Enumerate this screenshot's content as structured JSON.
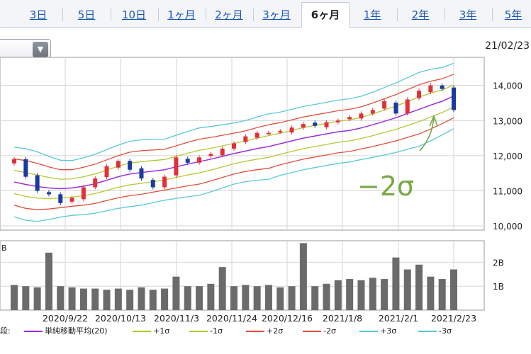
{
  "tabs": [
    {
      "label": "3日",
      "active": false
    },
    {
      "label": "5日",
      "active": false
    },
    {
      "label": "10日",
      "active": false
    },
    {
      "label": "1ヶ月",
      "active": false
    },
    {
      "label": "2ヶ月",
      "active": false
    },
    {
      "label": "3ヶ月",
      "active": false
    },
    {
      "label": "6ヶ月",
      "active": true
    },
    {
      "label": "1年",
      "active": false
    },
    {
      "label": "2年",
      "active": false
    },
    {
      "label": "3年",
      "active": false
    },
    {
      "label": "5年",
      "active": false
    }
  ],
  "dropdown": {
    "icon": "triangle-down-icon"
  },
  "date_label": "21/02/23",
  "annotation": "−2σ",
  "volume_axis_partial": "B",
  "legend_prefix": "段:",
  "chart_data": {
    "type": "line",
    "subtype": "candlestick-with-bollinger-bands",
    "x_tick_labels": [
      "2020/9/22",
      "2020/10/13",
      "2020/11/3",
      "2020/11/24",
      "2020/12/16",
      "2021/1/8",
      "2021/2/1",
      "2021/2/23"
    ],
    "price_axis": {
      "ticks": [
        10000,
        11000,
        12000,
        13000,
        14000
      ],
      "tick_labels": [
        "10,000",
        "11,000",
        "12,000",
        "13,000",
        "14,000"
      ],
      "ylim": [
        9880,
        14800
      ]
    },
    "volume_axis": {
      "ticks": [
        1,
        2
      ],
      "tick_labels": [
        "1B",
        "2B"
      ],
      "ylim": [
        0,
        2.9
      ]
    },
    "ma20": [
      11250,
      11180,
      11120,
      11080,
      11060,
      11080,
      11130,
      11200,
      11300,
      11400,
      11480,
      11520,
      11560,
      11600,
      11680,
      11760,
      11830,
      11900,
      11980,
      12060,
      12130,
      12200,
      12260,
      12340,
      12420,
      12500,
      12560,
      12620,
      12680,
      12720,
      12790,
      12880,
      12980,
      13080,
      13200,
      13320,
      13440,
      13550,
      13700
    ],
    "sigma": [
      330,
      340,
      330,
      300,
      270,
      260,
      270,
      280,
      290,
      300,
      310,
      310,
      300,
      290,
      300,
      310,
      320,
      310,
      300,
      290,
      290,
      300,
      310,
      300,
      300,
      300,
      300,
      300,
      300,
      300,
      300,
      310,
      320,
      330,
      340,
      350,
      340,
      320,
      310
    ],
    "close": [
      11900,
      11400,
      11000,
      10900,
      10650,
      10800,
      11100,
      11350,
      11700,
      11850,
      11600,
      11350,
      11100,
      11400,
      11950,
      11800,
      11950,
      12050,
      12200,
      12350,
      12550,
      12650,
      12650,
      12700,
      12800,
      12900,
      12850,
      12950,
      13000,
      13100,
      13200,
      13300,
      13550,
      13200,
      13600,
      13850,
      14000,
      13900,
      13300
    ],
    "volume": [
      1.05,
      1.0,
      0.95,
      2.4,
      1.0,
      0.95,
      0.9,
      0.9,
      0.85,
      0.9,
      0.85,
      0.95,
      0.85,
      0.9,
      1.4,
      1.0,
      1.0,
      1.1,
      1.8,
      1.0,
      1.05,
      1.0,
      1.05,
      0.95,
      1.0,
      2.8,
      1.0,
      1.1,
      1.25,
      1.3,
      1.25,
      1.35,
      1.3,
      2.2,
      1.7,
      1.9,
      1.4,
      1.3,
      1.7
    ],
    "series": [
      {
        "name": "単純移動平均(20)",
        "color": "#9b2fd9"
      },
      {
        "name": "+1σ",
        "color": "#b5c832"
      },
      {
        "name": "-1σ",
        "color": "#b5c832"
      },
      {
        "name": "+2σ",
        "color": "#e0503a"
      },
      {
        "name": "-2σ",
        "color": "#e0503a"
      },
      {
        "name": "+3σ",
        "color": "#5bc8da"
      },
      {
        "name": "-3σ",
        "color": "#5bc8da"
      }
    ],
    "candle_colors": {
      "up": "#e0303a",
      "down": "#1a3aa0"
    },
    "grid": true
  }
}
